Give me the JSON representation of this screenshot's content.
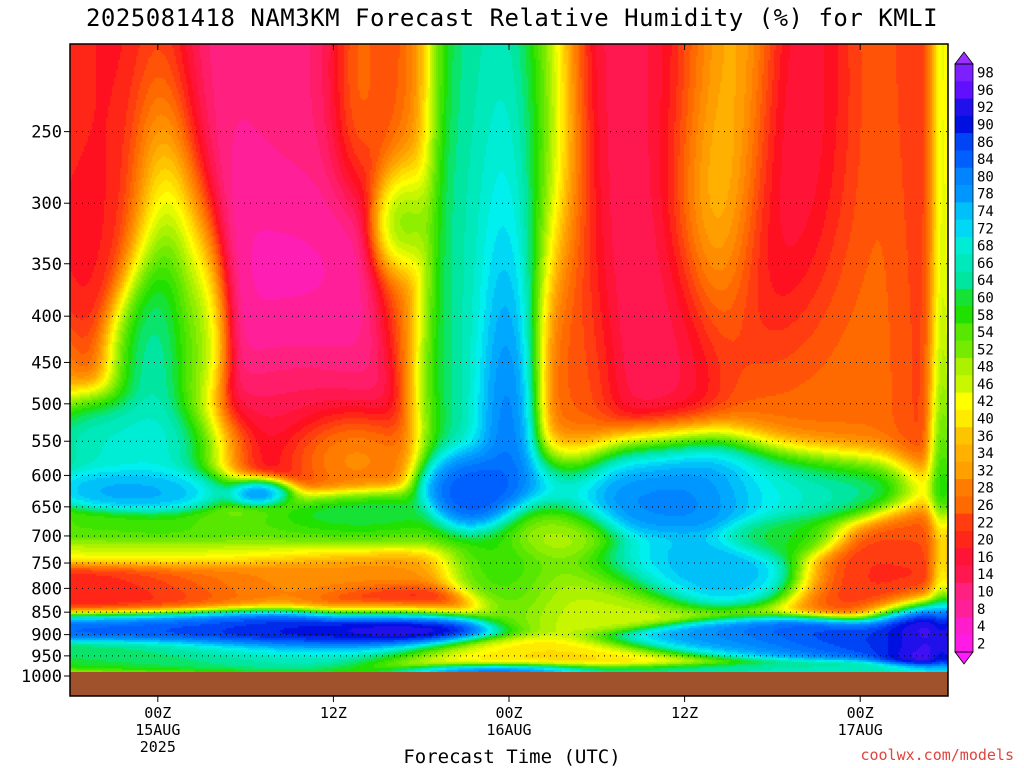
{
  "title": "2025081418 NAM3KM Forecast Relative Humidity (%) for KMLI",
  "credit": "coolwx.com/models",
  "colors": {
    "ground": "#a0522d",
    "grid": "#000000",
    "credit": "#e0443c"
  },
  "chart_data": {
    "type": "heatmap",
    "title": "2025081418 NAM3KM Forecast Relative Humidity (%) for KMLI",
    "xlabel": "Forecast Time (UTC)",
    "ylabel": "",
    "x_range_hours_from_init": [
      0,
      60
    ],
    "x_ticks": [
      {
        "hour": 6,
        "label": [
          "00Z",
          "15AUG",
          "2025"
        ]
      },
      {
        "hour": 18,
        "label": [
          "12Z"
        ]
      },
      {
        "hour": 30,
        "label": [
          "00Z",
          "16AUG"
        ]
      },
      {
        "hour": 42,
        "label": [
          "12Z"
        ]
      },
      {
        "hour": 54,
        "label": [
          "00Z",
          "17AUG"
        ]
      }
    ],
    "y_scale": "log-pressure",
    "y_range_hpa": [
      1000,
      200
    ],
    "y_ticks": [
      250,
      300,
      350,
      400,
      450,
      500,
      550,
      600,
      650,
      700,
      750,
      800,
      850,
      900,
      950,
      1000
    ],
    "grid": true,
    "colorbar": {
      "labels": [
        98,
        96,
        92,
        90,
        86,
        84,
        80,
        78,
        74,
        72,
        68,
        66,
        64,
        60,
        58,
        54,
        52,
        48,
        46,
        42,
        40,
        36,
        34,
        32,
        28,
        26,
        22,
        20,
        16,
        14,
        10,
        8,
        4,
        2
      ],
      "stops": [
        {
          "v": 0,
          "c": "#ff1aff"
        },
        {
          "v": 10,
          "c": "#ff2080"
        },
        {
          "v": 18,
          "c": "#ff1020"
        },
        {
          "v": 26,
          "c": "#ff6a00"
        },
        {
          "v": 34,
          "c": "#ffb000"
        },
        {
          "v": 42,
          "c": "#ffff00"
        },
        {
          "v": 50,
          "c": "#90ee00"
        },
        {
          "v": 58,
          "c": "#20e000"
        },
        {
          "v": 64,
          "c": "#00e6a0"
        },
        {
          "v": 70,
          "c": "#00f0f0"
        },
        {
          "v": 76,
          "c": "#00a8ff"
        },
        {
          "v": 84,
          "c": "#0060ff"
        },
        {
          "v": 90,
          "c": "#0010e0"
        },
        {
          "v": 96,
          "c": "#6010ff"
        },
        {
          "v": 100,
          "c": "#9a30ff"
        }
      ]
    },
    "field_blobs": [
      {
        "t": 0,
        "p": 220,
        "rt": 4,
        "rp": 60,
        "v": 20
      },
      {
        "t": 2,
        "p": 300,
        "rt": 2.5,
        "rp": 40,
        "v": 18
      },
      {
        "t": 6.5,
        "p": 400,
        "rt": 1.6,
        "rp": 110,
        "v": 76
      },
      {
        "t": 6,
        "p": 550,
        "rt": 3,
        "rp": 30,
        "v": 70
      },
      {
        "t": 9,
        "p": 420,
        "rt": 1,
        "rp": 60,
        "v": 60
      },
      {
        "t": 14,
        "p": 300,
        "rt": 5,
        "rp": 150,
        "v": 6
      },
      {
        "t": 12.5,
        "p": 200,
        "rt": 5,
        "rp": 50,
        "v": 10
      },
      {
        "t": 17,
        "p": 220,
        "rt": 3,
        "rp": 40,
        "v": 14
      },
      {
        "t": 19.5,
        "p": 215,
        "rt": 1.2,
        "rp": 40,
        "v": 46
      },
      {
        "t": 22.5,
        "p": 310,
        "rt": 1,
        "rp": 25,
        "v": 74
      },
      {
        "t": 22.5,
        "p": 260,
        "rt": 1.2,
        "rp": 80,
        "v": 30
      },
      {
        "t": 27,
        "p": 300,
        "rt": 2,
        "rp": 150,
        "v": 68
      },
      {
        "t": 30,
        "p": 420,
        "rt": 1.3,
        "rp": 120,
        "v": 88
      },
      {
        "t": 31.5,
        "p": 260,
        "rt": 2,
        "rp": 80,
        "v": 70
      },
      {
        "t": 34.5,
        "p": 440,
        "rt": 1.5,
        "rp": 90,
        "v": 28
      },
      {
        "t": 37.5,
        "p": 300,
        "rt": 4,
        "rp": 140,
        "v": 12
      },
      {
        "t": 41,
        "p": 200,
        "rt": 3,
        "rp": 50,
        "v": 14
      },
      {
        "t": 44.5,
        "p": 230,
        "rt": 2.2,
        "rp": 80,
        "v": 50
      },
      {
        "t": 49,
        "p": 280,
        "rt": 2.5,
        "rp": 80,
        "v": 8
      },
      {
        "t": 53,
        "p": 380,
        "rt": 4,
        "rp": 120,
        "v": 26
      },
      {
        "t": 58.5,
        "p": 300,
        "rt": 1.5,
        "rp": 180,
        "v": 20
      },
      {
        "t": 59.5,
        "p": 420,
        "rt": 0.5,
        "rp": 250,
        "v": 68
      },
      {
        "t": 15,
        "p": 520,
        "rt": 3,
        "rp": 50,
        "v": 16
      },
      {
        "t": 18,
        "p": 560,
        "rt": 2,
        "rp": 30,
        "v": 36
      },
      {
        "t": 6,
        "p": 620,
        "rt": 3,
        "rp": 20,
        "v": 78
      },
      {
        "t": 13,
        "p": 625,
        "rt": 1.2,
        "rp": 12,
        "v": 90
      },
      {
        "t": 10,
        "p": 690,
        "rt": 7,
        "rp": 20,
        "v": 56
      },
      {
        "t": 18,
        "p": 660,
        "rt": 3,
        "rp": 20,
        "v": 64
      },
      {
        "t": 27.5,
        "p": 620,
        "rt": 1.5,
        "rp": 30,
        "v": 88
      },
      {
        "t": 33,
        "p": 690,
        "rt": 2,
        "rp": 30,
        "v": 46
      },
      {
        "t": 39,
        "p": 620,
        "rt": 5,
        "rp": 40,
        "v": 84
      },
      {
        "t": 42,
        "p": 760,
        "rt": 4,
        "rp": 30,
        "v": 76
      },
      {
        "t": 51,
        "p": 620,
        "rt": 4,
        "rp": 30,
        "v": 70
      },
      {
        "t": 49,
        "p": 700,
        "rt": 2,
        "rp": 20,
        "v": 60
      },
      {
        "t": 56,
        "p": 760,
        "rt": 3,
        "rp": 45,
        "v": 20
      },
      {
        "t": 58,
        "p": 700,
        "rt": 2,
        "rp": 30,
        "v": 24
      },
      {
        "t": 3,
        "p": 800,
        "rt": 5,
        "rp": 30,
        "v": 18
      },
      {
        "t": 14,
        "p": 780,
        "rt": 6,
        "rp": 30,
        "v": 30
      },
      {
        "t": 22,
        "p": 830,
        "rt": 3,
        "rp": 20,
        "v": 14
      },
      {
        "t": 7,
        "p": 730,
        "rt": 6,
        "rp": 15,
        "v": 46
      },
      {
        "t": 35,
        "p": 800,
        "rt": 3,
        "rp": 40,
        "v": 46
      },
      {
        "t": 30,
        "p": 780,
        "rt": 2,
        "rp": 40,
        "v": 58
      },
      {
        "t": 6,
        "p": 880,
        "rt": 6,
        "rp": 18,
        "v": 86
      },
      {
        "t": 16,
        "p": 900,
        "rt": 5,
        "rp": 28,
        "v": 92
      },
      {
        "t": 22,
        "p": 870,
        "rt": 2.5,
        "rp": 22,
        "v": 96
      },
      {
        "t": 10,
        "p": 940,
        "rt": 8,
        "rp": 18,
        "v": 62
      },
      {
        "t": 33,
        "p": 950,
        "rt": 6,
        "rp": 20,
        "v": 38
      },
      {
        "t": 45,
        "p": 920,
        "rt": 4,
        "rp": 18,
        "v": 78
      },
      {
        "t": 53,
        "p": 910,
        "rt": 5,
        "rp": 20,
        "v": 88
      },
      {
        "t": 59,
        "p": 900,
        "rt": 2,
        "rp": 40,
        "v": 98
      },
      {
        "t": 30,
        "p": 985,
        "rt": 3,
        "rp": 10,
        "v": 92
      },
      {
        "t": 45,
        "p": 985,
        "rt": 10,
        "rp": 10,
        "v": 66
      }
    ],
    "field_background": 40
  }
}
